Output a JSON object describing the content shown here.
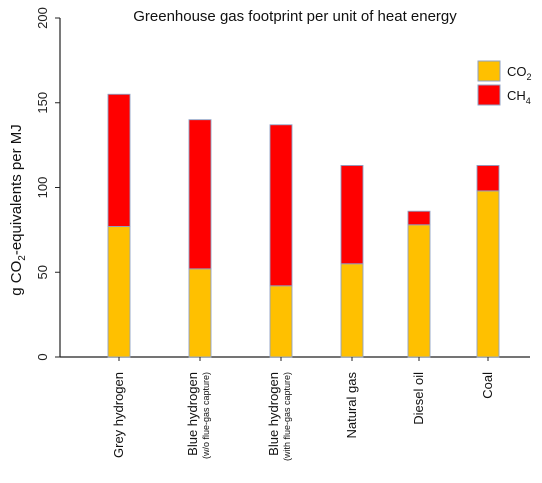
{
  "chart_data": {
    "type": "bar",
    "stacked": true,
    "title": "Greenhouse gas footprint per unit of heat energy",
    "ylabel": {
      "pre": "g CO",
      "sub": "2",
      "post": "-equivalents per MJ"
    },
    "ylim": [
      0,
      200
    ],
    "yticks": [
      "0",
      "50",
      "100",
      "150",
      "200"
    ],
    "categories": [
      {
        "label": "Grey hydrogen",
        "sub": ""
      },
      {
        "label": "Blue hydrogen",
        "sub": "(w/o flue-gas capture)"
      },
      {
        "label": "Blue hydrogen",
        "sub": "(with flue-gas capture)"
      },
      {
        "label": "Natural gas",
        "sub": ""
      },
      {
        "label": "Diesel oil",
        "sub": ""
      },
      {
        "label": "Coal",
        "sub": ""
      }
    ],
    "series": [
      {
        "name": "CO",
        "sub": "2",
        "color": "#FFC000",
        "values": [
          77,
          52,
          42,
          55,
          78,
          98
        ]
      },
      {
        "name": "CH",
        "sub": "4",
        "color": "#FF0000",
        "values": [
          78,
          88,
          95,
          58,
          8,
          15
        ]
      }
    ],
    "grid": false,
    "legend": "top-right"
  }
}
